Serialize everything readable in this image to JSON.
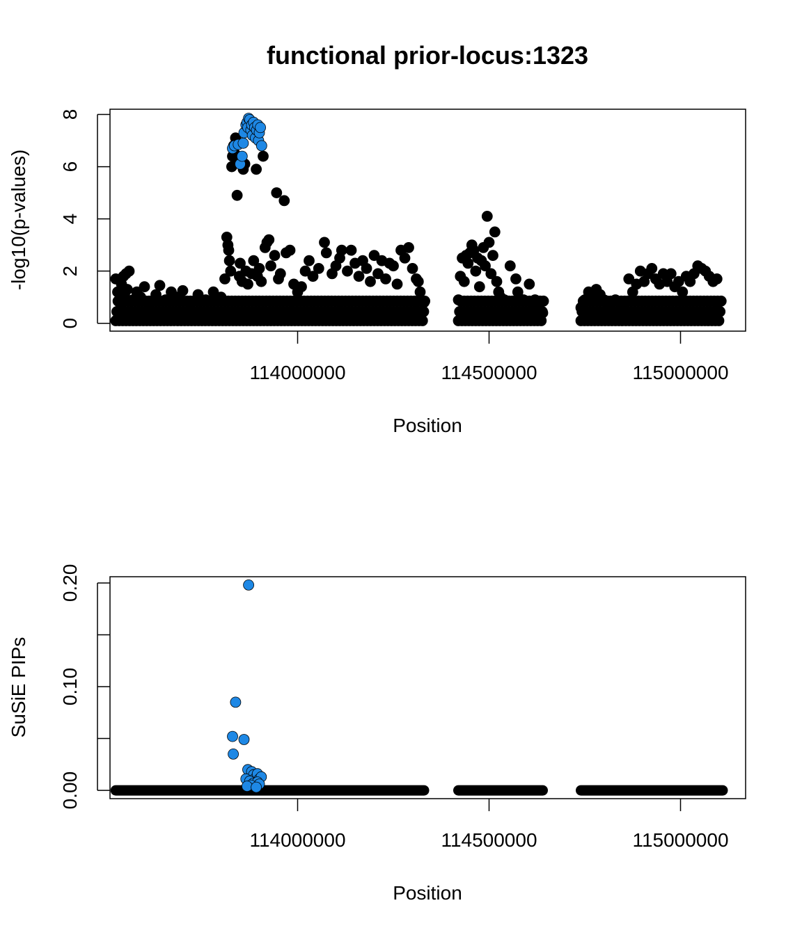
{
  "title": "functional prior-locus:1323",
  "colors": {
    "background": "#ffffff",
    "point_default": "#000000",
    "point_highlight": "#1e88e5",
    "axis": "#000000"
  },
  "chart_data": [
    {
      "type": "scatter",
      "title": "functional prior-locus:1323",
      "xlabel": "Position",
      "ylabel": "-log10(p-values)",
      "xlim": [
        113510000,
        115170000
      ],
      "ylim": [
        -0.3,
        8.2
      ],
      "x_ticks": [
        114000000,
        114500000,
        115000000
      ],
      "x_tick_labels": [
        "114000000",
        "114500000",
        "115000000"
      ],
      "y_ticks": [
        0,
        2,
        4,
        6,
        8
      ],
      "y_tick_labels": [
        "0",
        "2",
        "4",
        "6",
        "8"
      ],
      "grid": false,
      "legend": "none",
      "series": [
        {
          "color": "#000000",
          "points": [
            [
              113525000,
              1.7
            ],
            [
              113530000,
              1.2
            ],
            [
              113535000,
              0.8
            ],
            [
              113540000,
              1.5
            ],
            [
              113545000,
              1.8
            ],
            [
              113548000,
              1.1
            ],
            [
              113552000,
              1.9
            ],
            [
              113555000,
              1.3
            ],
            [
              113560000,
              2.0
            ],
            [
              113570000,
              0.9
            ],
            [
              113580000,
              1.2
            ],
            [
              113590000,
              1.0
            ],
            [
              113600000,
              1.4
            ],
            [
              113615000,
              0.8
            ],
            [
              113630000,
              1.1
            ],
            [
              113640000,
              1.45
            ],
            [
              113655000,
              0.9
            ],
            [
              113670000,
              1.2
            ],
            [
              113685000,
              1.0
            ],
            [
              113700000,
              1.25
            ],
            [
              113720000,
              0.8
            ],
            [
              113740000,
              1.1
            ],
            [
              113760000,
              0.9
            ],
            [
              113780000,
              1.2
            ],
            [
              113800000,
              1.0
            ],
            [
              113810000,
              1.7
            ],
            [
              113815000,
              3.3
            ],
            [
              113818000,
              3.0
            ],
            [
              113820000,
              2.8
            ],
            [
              113822000,
              2.4
            ],
            [
              113825000,
              2.0
            ],
            [
              113828000,
              6.0
            ],
            [
              113830000,
              6.4
            ],
            [
              113833000,
              6.8
            ],
            [
              113836000,
              6.5
            ],
            [
              113838000,
              7.1
            ],
            [
              113840000,
              6.2
            ],
            [
              113842000,
              4.9
            ],
            [
              113845000,
              6.9
            ],
            [
              113848000,
              1.8
            ],
            [
              113850000,
              2.3
            ],
            [
              113855000,
              1.6
            ],
            [
              113858000,
              5.9
            ],
            [
              113862000,
              6.1
            ],
            [
              113865000,
              2.0
            ],
            [
              113870000,
              1.5
            ],
            [
              113880000,
              1.9
            ],
            [
              113885000,
              2.4
            ],
            [
              113892000,
              5.9
            ],
            [
              113895000,
              1.8
            ],
            [
              113900000,
              2.1
            ],
            [
              113905000,
              1.6
            ],
            [
              113910000,
              6.4
            ],
            [
              113915000,
              2.9
            ],
            [
              113920000,
              3.1
            ],
            [
              113925000,
              3.2
            ],
            [
              113930000,
              2.2
            ],
            [
              113940000,
              2.6
            ],
            [
              113945000,
              5.0
            ],
            [
              113950000,
              1.7
            ],
            [
              113955000,
              1.9
            ],
            [
              113965000,
              4.7
            ],
            [
              113970000,
              2.7
            ],
            [
              113980000,
              2.8
            ],
            [
              113990000,
              1.5
            ],
            [
              114000000,
              1.2
            ],
            [
              114010000,
              1.4
            ],
            [
              114020000,
              2.0
            ],
            [
              114030000,
              2.4
            ],
            [
              114040000,
              1.8
            ],
            [
              114055000,
              2.1
            ],
            [
              114070000,
              3.1
            ],
            [
              114075000,
              2.7
            ],
            [
              114090000,
              1.9
            ],
            [
              114100000,
              2.2
            ],
            [
              114110000,
              2.5
            ],
            [
              114115000,
              2.8
            ],
            [
              114130000,
              2.0
            ],
            [
              114140000,
              2.8
            ],
            [
              114150000,
              2.3
            ],
            [
              114160000,
              1.8
            ],
            [
              114170000,
              2.4
            ],
            [
              114180000,
              2.1
            ],
            [
              114190000,
              1.6
            ],
            [
              114200000,
              2.6
            ],
            [
              114210000,
              1.9
            ],
            [
              114220000,
              2.4
            ],
            [
              114230000,
              1.7
            ],
            [
              114240000,
              2.3
            ],
            [
              114250000,
              2.2
            ],
            [
              114260000,
              1.5
            ],
            [
              114270000,
              2.8
            ],
            [
              114280000,
              2.5
            ],
            [
              114290000,
              2.9
            ],
            [
              114300000,
              2.1
            ],
            [
              114310000,
              1.7
            ],
            [
              114315000,
              1.6
            ],
            [
              114320000,
              1.2
            ],
            [
              114330000,
              0.8
            ],
            [
              114420000,
              0.9
            ],
            [
              114425000,
              1.8
            ],
            [
              114430000,
              2.5
            ],
            [
              114435000,
              1.6
            ],
            [
              114440000,
              2.6
            ],
            [
              114445000,
              2.3
            ],
            [
              114450000,
              2.7
            ],
            [
              114455000,
              3.0
            ],
            [
              114460000,
              2.8
            ],
            [
              114465000,
              2.0
            ],
            [
              114470000,
              2.5
            ],
            [
              114475000,
              1.4
            ],
            [
              114480000,
              2.4
            ],
            [
              114485000,
              2.9
            ],
            [
              114490000,
              2.2
            ],
            [
              114495000,
              4.1
            ],
            [
              114500000,
              3.1
            ],
            [
              114505000,
              1.9
            ],
            [
              114510000,
              2.6
            ],
            [
              114515000,
              3.5
            ],
            [
              114520000,
              1.6
            ],
            [
              114525000,
              1.2
            ],
            [
              114530000,
              1.0
            ],
            [
              114540000,
              0.9
            ],
            [
              114555000,
              2.2
            ],
            [
              114570000,
              1.7
            ],
            [
              114575000,
              1.2
            ],
            [
              114590000,
              0.9
            ],
            [
              114605000,
              1.5
            ],
            [
              114615000,
              0.7
            ],
            [
              114620000,
              0.9
            ],
            [
              114630000,
              0.5
            ],
            [
              114640000,
              0.4
            ],
            [
              114740000,
              0.6
            ],
            [
              114750000,
              0.9
            ],
            [
              114760000,
              1.2
            ],
            [
              114770000,
              1.0
            ],
            [
              114780000,
              1.3
            ],
            [
              114790000,
              1.1
            ],
            [
              114800000,
              0.9
            ],
            [
              114815000,
              0.7
            ],
            [
              114830000,
              0.9
            ],
            [
              114850000,
              0.8
            ],
            [
              114865000,
              1.7
            ],
            [
              114875000,
              1.2
            ],
            [
              114885000,
              1.5
            ],
            [
              114895000,
              2.0
            ],
            [
              114905000,
              1.6
            ],
            [
              114915000,
              1.9
            ],
            [
              114925000,
              2.1
            ],
            [
              114935000,
              1.7
            ],
            [
              114945000,
              1.5
            ],
            [
              114955000,
              1.9
            ],
            [
              114965000,
              1.6
            ],
            [
              114975000,
              1.9
            ],
            [
              114985000,
              1.4
            ],
            [
              114995000,
              1.6
            ],
            [
              115005000,
              1.2
            ],
            [
              115015000,
              1.8
            ],
            [
              115025000,
              1.6
            ],
            [
              115035000,
              1.9
            ],
            [
              115045000,
              2.2
            ],
            [
              115055000,
              2.1
            ],
            [
              115065000,
              2.0
            ],
            [
              115075000,
              1.8
            ],
            [
              115085000,
              1.6
            ],
            [
              115095000,
              1.7
            ],
            [
              115100000,
              0.8
            ]
          ]
        },
        {
          "color": "#1e88e5",
          "points": [
            [
              113830000,
              6.7
            ],
            [
              113835000,
              6.8
            ],
            [
              113845000,
              6.85
            ],
            [
              113850000,
              6.1
            ],
            [
              113855000,
              6.4
            ],
            [
              113858000,
              6.9
            ],
            [
              113860000,
              7.3
            ],
            [
              113865000,
              7.6
            ],
            [
              113868000,
              7.7
            ],
            [
              113870000,
              7.5
            ],
            [
              113872000,
              7.85
            ],
            [
              113875000,
              7.8
            ],
            [
              113878000,
              7.4
            ],
            [
              113880000,
              7.6
            ],
            [
              113882000,
              7.2
            ],
            [
              113885000,
              7.7
            ],
            [
              113888000,
              7.5
            ],
            [
              113890000,
              7.1
            ],
            [
              113893000,
              7.4
            ],
            [
              113896000,
              7.6
            ],
            [
              113898000,
              7.0
            ],
            [
              113900000,
              7.3
            ],
            [
              113903000,
              7.5
            ],
            [
              113906000,
              6.8
            ]
          ]
        }
      ]
    },
    {
      "type": "scatter",
      "xlabel": "Position",
      "ylabel": "SuSiE PIPs",
      "xlim": [
        113510000,
        115170000
      ],
      "ylim": [
        -0.008,
        0.206
      ],
      "x_ticks": [
        114000000,
        114500000,
        115000000
      ],
      "x_tick_labels": [
        "114000000",
        "114500000",
        "115000000"
      ],
      "y_ticks": [
        0.0,
        0.05,
        0.1,
        0.15,
        0.2
      ],
      "y_tick_labels": [
        "0.00",
        "",
        "0.10",
        "",
        "0.20"
      ],
      "grid": false,
      "legend": "none",
      "series": [
        {
          "color": "#000000",
          "segments": [
            [
              113525000,
              114330000,
              0.0
            ],
            [
              114420000,
              114640000,
              0.0
            ],
            [
              114740000,
              115110000,
              0.0
            ]
          ]
        },
        {
          "color": "#1e88e5",
          "points": [
            [
              113872000,
              0.198
            ],
            [
              113838000,
              0.085
            ],
            [
              113830000,
              0.052
            ],
            [
              113860000,
              0.049
            ],
            [
              113832000,
              0.035
            ],
            [
              113870000,
              0.02
            ],
            [
              113880000,
              0.018
            ],
            [
              113885000,
              0.015
            ],
            [
              113890000,
              0.012
            ],
            [
              113895000,
              0.016
            ],
            [
              113900000,
              0.011
            ],
            [
              113905000,
              0.013
            ],
            [
              113865000,
              0.011
            ],
            [
              113875000,
              0.009
            ],
            [
              113885000,
              0.007
            ],
            [
              113895000,
              0.008
            ],
            [
              113900000,
              0.006
            ],
            [
              113878000,
              0.005
            ],
            [
              113868000,
              0.004
            ],
            [
              113892000,
              0.003
            ]
          ]
        }
      ]
    }
  ]
}
